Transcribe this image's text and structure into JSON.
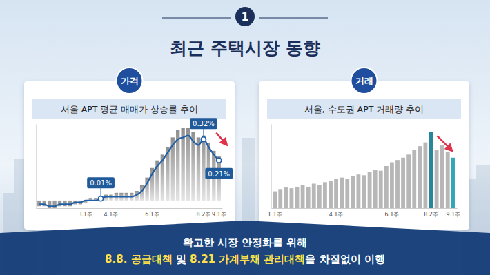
{
  "header": {
    "number": "1",
    "title": "최근 주택시장 동향"
  },
  "chart_data": [
    {
      "type": "bar",
      "subtitle": "가격",
      "title": "서울 APT 평균 매매가 상승률 추이",
      "categories": [
        null,
        null,
        null,
        null,
        null,
        null,
        null,
        null,
        null,
        "3.1주",
        null,
        null,
        null,
        null,
        "4.1주",
        null,
        null,
        null,
        null,
        null,
        null,
        null,
        "6.1주",
        null,
        null,
        null,
        null,
        null,
        null,
        null,
        null,
        null,
        "8.2주",
        null,
        null,
        "9.1주"
      ],
      "series": [
        {
          "type": "bar",
          "color": "#b0b0b0",
          "values": [
            -0.03,
            -0.03,
            -0.04,
            -0.04,
            -0.03,
            -0.03,
            -0.03,
            -0.02,
            -0.02,
            -0.01,
            0.01,
            0.01,
            0.02,
            0.03,
            0.03,
            0.04,
            0.04,
            0.04,
            0.04,
            0.05,
            0.08,
            0.12,
            0.17,
            0.21,
            0.24,
            0.28,
            0.33,
            0.37,
            0.38,
            0.38,
            0.36,
            0.33,
            0.34,
            0.3,
            0.26,
            0.23
          ]
        },
        {
          "type": "line",
          "color": "#1f5fa8",
          "values": [
            -0.02,
            -0.02,
            -0.03,
            -0.03,
            -0.02,
            -0.02,
            -0.02,
            -0.01,
            -0.01,
            0,
            0,
            0,
            0.01,
            0.02,
            0.02,
            0.02,
            0.02,
            0.02,
            0.02,
            0.03,
            0.05,
            0.09,
            0.14,
            0.18,
            0.21,
            0.25,
            0.29,
            0.32,
            0.33,
            0.34,
            0.31,
            0.29,
            0.32,
            0.28,
            0.24,
            0.21
          ]
        }
      ],
      "annotations": [
        {
          "index": 12,
          "value": 0.01,
          "label": "0.01%"
        },
        {
          "index": 32,
          "value": 0.32,
          "label": "0.32%"
        },
        {
          "index": 35,
          "value": 0.21,
          "label": "0.21%"
        }
      ],
      "ylim": [
        -0.04,
        0.4
      ],
      "tick_labels": "x"
    },
    {
      "type": "bar",
      "subtitle": "거래",
      "title": "서울, 수도권 APT 거래량 추이",
      "categories": [
        "1.1주",
        null,
        null,
        null,
        null,
        null,
        null,
        null,
        null,
        null,
        null,
        "4.1주",
        null,
        null,
        null,
        null,
        null,
        null,
        null,
        null,
        null,
        "6.1주",
        null,
        null,
        null,
        null,
        null,
        null,
        "8.2주",
        null,
        null,
        null,
        "9.1주"
      ],
      "values": [
        22,
        25,
        27,
        26,
        28,
        30,
        28,
        32,
        30,
        34,
        36,
        38,
        40,
        38,
        42,
        44,
        43,
        47,
        50,
        49,
        55,
        60,
        63,
        66,
        70,
        76,
        81,
        86,
        100,
        76,
        82,
        74,
        66
      ],
      "colors": [
        "#b3b3b3",
        "#b3b3b3",
        "#b3b3b3",
        "#b3b3b3",
        "#b3b3b3",
        "#b3b3b3",
        "#b3b3b3",
        "#b3b3b3",
        "#b3b3b3",
        "#b3b3b3",
        "#b3b3b3",
        "#b3b3b3",
        "#b3b3b3",
        "#b3b3b3",
        "#b3b3b3",
        "#b3b3b3",
        "#b3b3b3",
        "#b3b3b3",
        "#b3b3b3",
        "#b3b3b3",
        "#b3b3b3",
        "#b3b3b3",
        "#b3b3b3",
        "#b3b3b3",
        "#b3b3b3",
        "#b3b3b3",
        "#b3b3b3",
        "#b3b3b3",
        "#1b7f95",
        "#b3b3b3",
        "#b3b3b3",
        "#b3b3b3",
        "#2aa1b3"
      ],
      "ylim": [
        0,
        110
      ],
      "tick_labels": "x"
    }
  ],
  "footer": {
    "line1": "확고한 시장 안정화를 위해",
    "line2": [
      {
        "text": "8.8. 공급대책",
        "highlight": true
      },
      {
        "text": " 및 ",
        "highlight": false
      },
      {
        "text": "8.21 가계부채 관리대책",
        "highlight": true
      },
      {
        "text": "을 차질없이 이행",
        "highlight": false
      }
    ]
  }
}
